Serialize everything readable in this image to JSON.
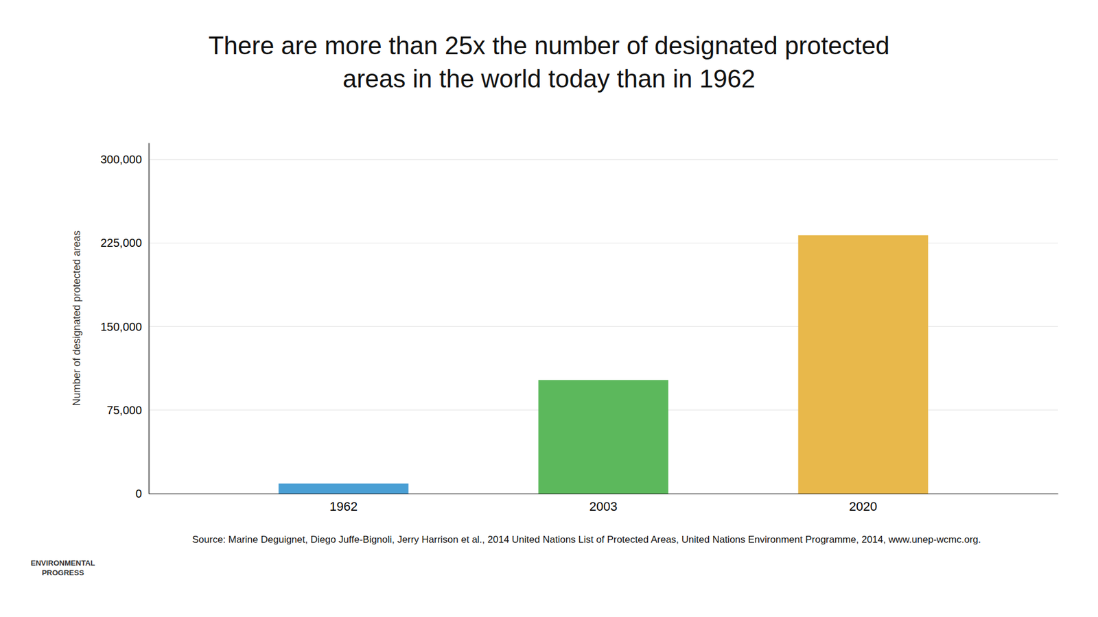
{
  "chart_data": {
    "type": "bar",
    "title": "There are more than 25x the number of designated protected areas in the world today than in 1962",
    "ylabel": "Number of designated protected areas",
    "categories": [
      "1962",
      "2003",
      "2020"
    ],
    "values": [
      9000,
      102000,
      232000
    ],
    "colors": [
      "#4a9fd4",
      "#5cb85c",
      "#e8b84b"
    ],
    "ylim": [
      0,
      315000
    ],
    "yticks": [
      0,
      {
        "value": 75000,
        "label": "75,000"
      },
      {
        "value": 150000,
        "label": "150,000"
      },
      {
        "value": 225000,
        "label": "225,000"
      },
      {
        "value": 300000,
        "label": "300,000"
      }
    ],
    "grid": true,
    "annotations": [
      "Source: Marine Deguignet, Diego Juffe-Bignoli, Jerry Harrison et al., 2014 United Nations List of Protected Areas, United Nations Environment Programme, 2014, www.unep-wcmc.org.",
      "ENVIRONMENTAL PROGRESS"
    ]
  }
}
